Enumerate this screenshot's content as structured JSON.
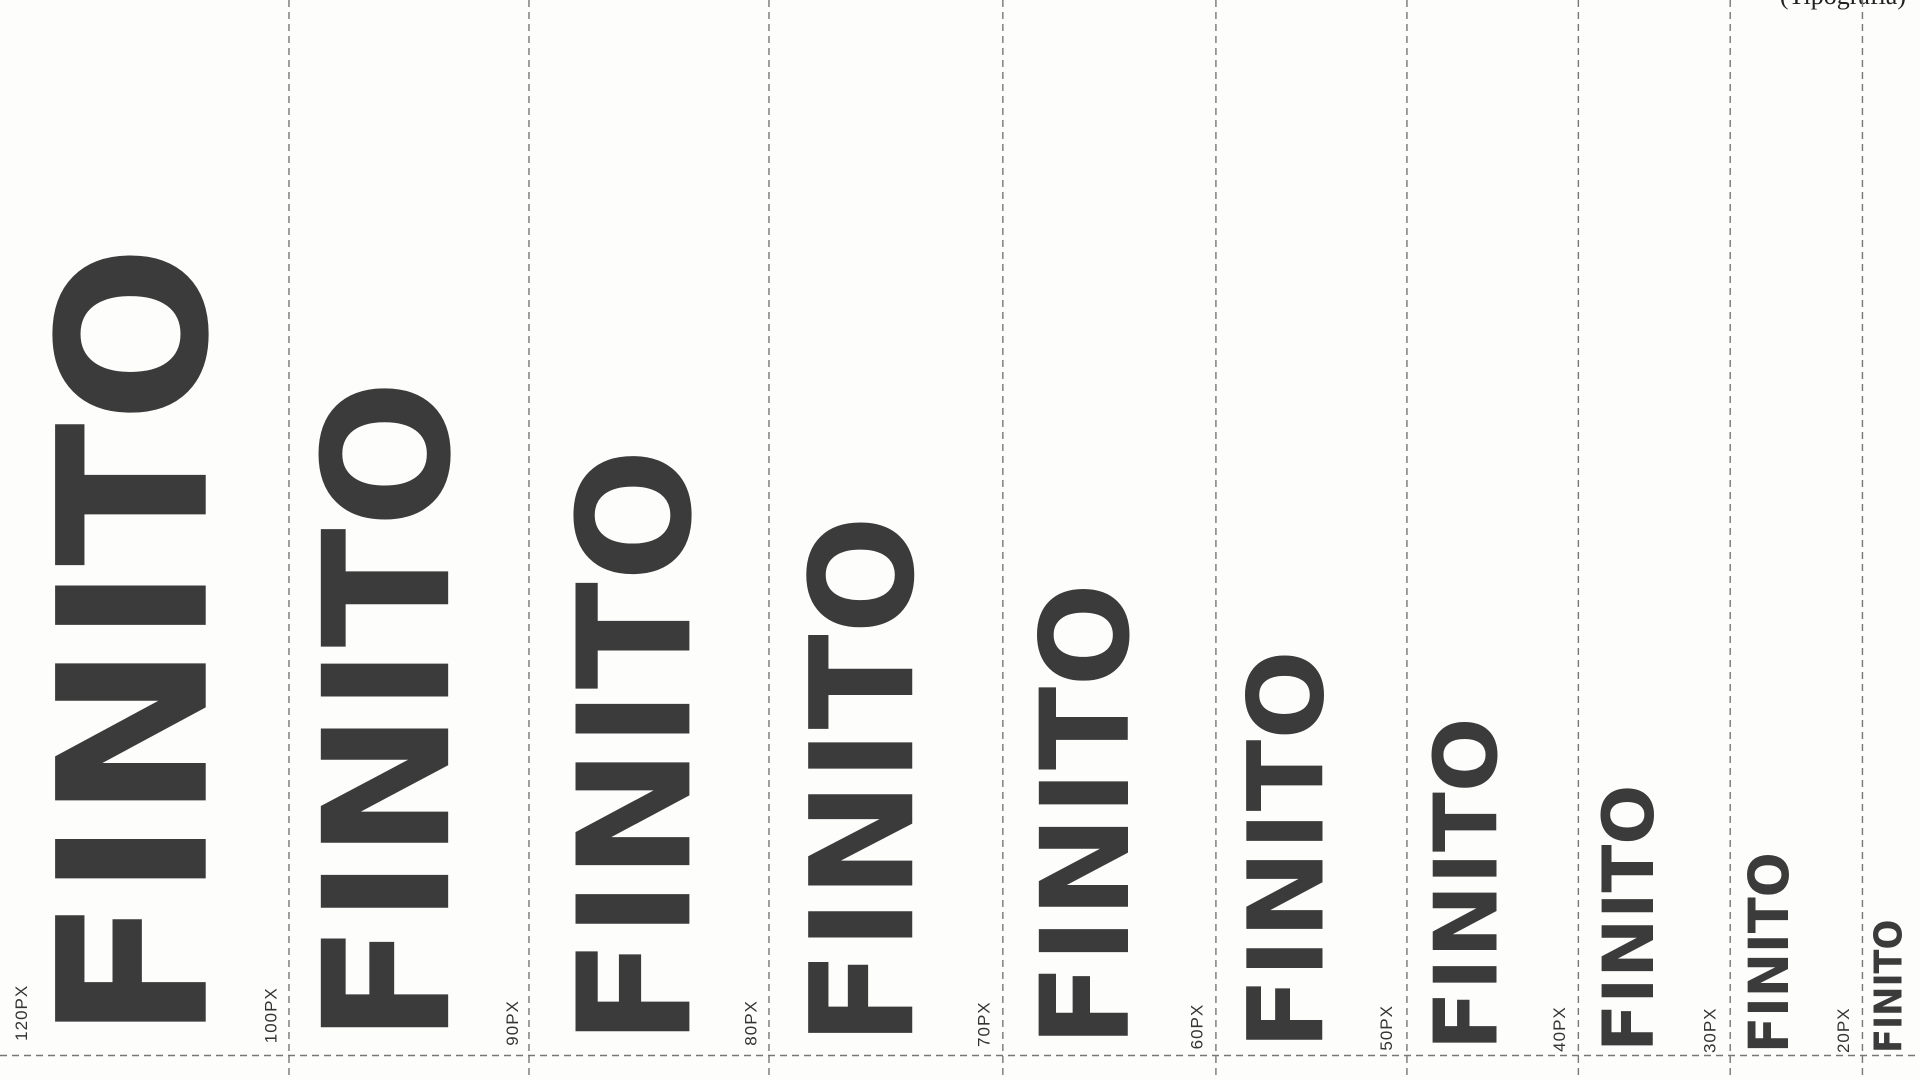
{
  "header": {
    "note": "(Tipografia)"
  },
  "columns": [
    {
      "label": "120PX",
      "word": "FINITO"
    },
    {
      "label": "100PX",
      "word": "FINITO"
    },
    {
      "label": "90PX",
      "word": "FINITO"
    },
    {
      "label": "80PX",
      "word": "FINITO"
    },
    {
      "label": "70PX",
      "word": "FINITO"
    },
    {
      "label": "60PX",
      "word": "FINITO"
    },
    {
      "label": "50PX",
      "word": "FINITO"
    },
    {
      "label": "40PX",
      "word": "FINITO"
    },
    {
      "label": "30PX",
      "word": "FINITO"
    },
    {
      "label": "20PX",
      "word": "FINITO"
    }
  ]
}
